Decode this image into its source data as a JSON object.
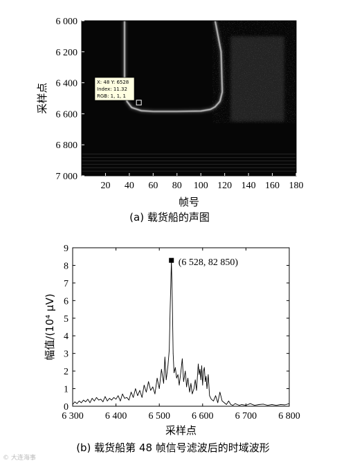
{
  "chart_data": [
    {
      "type": "heatmap",
      "caption": "(a)  载货船的声图",
      "xlabel": "帧号",
      "ylabel": "采样点",
      "xlim": [
        0,
        180
      ],
      "ylim": [
        7000,
        6000
      ],
      "x_ticks": [
        {
          "value": 20,
          "label": "20"
        },
        {
          "value": 40,
          "label": "40"
        },
        {
          "value": 60,
          "label": "60"
        },
        {
          "value": 80,
          "label": "80"
        },
        {
          "value": 100,
          "label": "100"
        },
        {
          "value": 120,
          "label": "120"
        },
        {
          "value": 140,
          "label": "140"
        },
        {
          "value": 160,
          "label": "160"
        },
        {
          "value": 180,
          "label": "180"
        }
      ],
      "y_ticks": [
        {
          "value": 6000,
          "label": "6 000"
        },
        {
          "value": 6200,
          "label": "6 200"
        },
        {
          "value": 6400,
          "label": "6 400"
        },
        {
          "value": 6600,
          "label": "6 600"
        },
        {
          "value": 6800,
          "label": "6 800"
        },
        {
          "value": 7000,
          "label": "7 000"
        }
      ],
      "echo_trace": [
        [
          36,
          6000
        ],
        [
          36,
          6440
        ],
        [
          38,
          6520
        ],
        [
          42,
          6560
        ],
        [
          50,
          6580
        ],
        [
          60,
          6585
        ],
        [
          80,
          6585
        ],
        [
          100,
          6582
        ],
        [
          108,
          6572
        ],
        [
          112,
          6555
        ],
        [
          116,
          6520
        ],
        [
          118,
          6460
        ],
        [
          117,
          6200
        ],
        [
          112,
          6000
        ]
      ],
      "datatip": {
        "point": [
          48,
          6528
        ],
        "lines": [
          "X: 48 Y: 6528",
          "Index: 11.32",
          "RGB: 1, 1, 1"
        ]
      },
      "colormap": "gray",
      "colors": {
        "background": "#060606",
        "echo": "#f0f0f0",
        "bright_band": "#cfcfcf"
      }
    },
    {
      "type": "line",
      "caption": "(b)  载货船第 48 帧信号滤波后的时域波形",
      "xlabel": "采样点",
      "ylabel": "幅值/(10⁴ μV)",
      "xlim": [
        6300,
        6800
      ],
      "ylim": [
        0,
        9
      ],
      "x_ticks": [
        {
          "value": 6300,
          "label": "6 300"
        },
        {
          "value": 6400,
          "label": "6 400"
        },
        {
          "value": 6500,
          "label": "6 500"
        },
        {
          "value": 6600,
          "label": "6 600"
        },
        {
          "value": 6700,
          "label": "6 700"
        },
        {
          "value": 6800,
          "label": "6 800"
        }
      ],
      "y_ticks": [
        {
          "value": 0,
          "label": "0"
        },
        {
          "value": 1,
          "label": "1"
        },
        {
          "value": 2,
          "label": "2"
        },
        {
          "value": 3,
          "label": "3"
        },
        {
          "value": 4,
          "label": "4"
        },
        {
          "value": 5,
          "label": "5"
        },
        {
          "value": 6,
          "label": "6"
        },
        {
          "value": 7,
          "label": "7"
        },
        {
          "value": 8,
          "label": "8"
        },
        {
          "value": 9,
          "label": "9"
        }
      ],
      "annotation": {
        "point": [
          6528,
          8.285
        ],
        "text": "(6 528, 82 850)"
      },
      "series": [
        {
          "x": [
            6300,
            6305,
            6310,
            6315,
            6320,
            6325,
            6330,
            6335,
            6340,
            6345,
            6350,
            6355,
            6360,
            6365,
            6370,
            6375,
            6380,
            6385,
            6390,
            6395,
            6400,
            6405,
            6410,
            6415,
            6420,
            6425,
            6430,
            6435,
            6440,
            6445,
            6450,
            6455,
            6460,
            6465,
            6470,
            6475,
            6480,
            6485,
            6490,
            6495,
            6500,
            6505,
            6510,
            6513,
            6516,
            6520,
            6523,
            6525,
            6528,
            6530,
            6532,
            6534,
            6537,
            6540,
            6543,
            6546,
            6550,
            6553,
            6556,
            6560,
            6563,
            6566,
            6570,
            6573,
            6576,
            6580,
            6583,
            6586,
            6590,
            6592,
            6594,
            6596,
            6598,
            6600,
            6602,
            6604,
            6606,
            6608,
            6610,
            6613,
            6616,
            6620,
            6625,
            6630,
            6635,
            6640,
            6645,
            6650,
            6655,
            6660,
            6665,
            6670,
            6675,
            6680,
            6685,
            6690,
            6700,
            6710,
            6720,
            6730,
            6740,
            6750,
            6760,
            6770,
            6780,
            6790,
            6800
          ],
          "y": [
            0.1,
            0.25,
            0.15,
            0.3,
            0.2,
            0.35,
            0.25,
            0.4,
            0.2,
            0.45,
            0.3,
            0.5,
            0.35,
            0.4,
            0.25,
            0.55,
            0.3,
            0.45,
            0.35,
            0.5,
            0.4,
            0.6,
            0.3,
            0.7,
            0.45,
            0.5,
            0.35,
            0.8,
            0.5,
            1.0,
            0.6,
            0.9,
            0.5,
            1.2,
            0.8,
            1.4,
            0.9,
            1.1,
            0.7,
            1.6,
            1.0,
            2.1,
            1.3,
            2.8,
            1.5,
            2.3,
            3.2,
            5.4,
            8.285,
            6.0,
            3.0,
            1.9,
            2.2,
            1.6,
            1.8,
            1.2,
            2.0,
            2.7,
            1.4,
            2.0,
            1.1,
            1.6,
            0.8,
            1.3,
            0.7,
            1.0,
            1.5,
            0.9,
            2.4,
            1.8,
            2.1,
            1.5,
            2.3,
            1.2,
            2.0,
            2.2,
            1.4,
            1.7,
            1.0,
            1.8,
            0.6,
            0.4,
            0.3,
            0.6,
            0.2,
            0.8,
            0.3,
            0.2,
            0.1,
            0.3,
            0.1,
            0.05,
            0.15,
            0.1,
            0.05,
            0.1,
            0.05,
            0.15,
            0.05,
            0.1,
            0.12,
            0.05,
            0.1,
            0.05,
            0.1,
            0.08,
            0.15
          ]
        }
      ]
    }
  ],
  "watermark": "© 大连海事"
}
